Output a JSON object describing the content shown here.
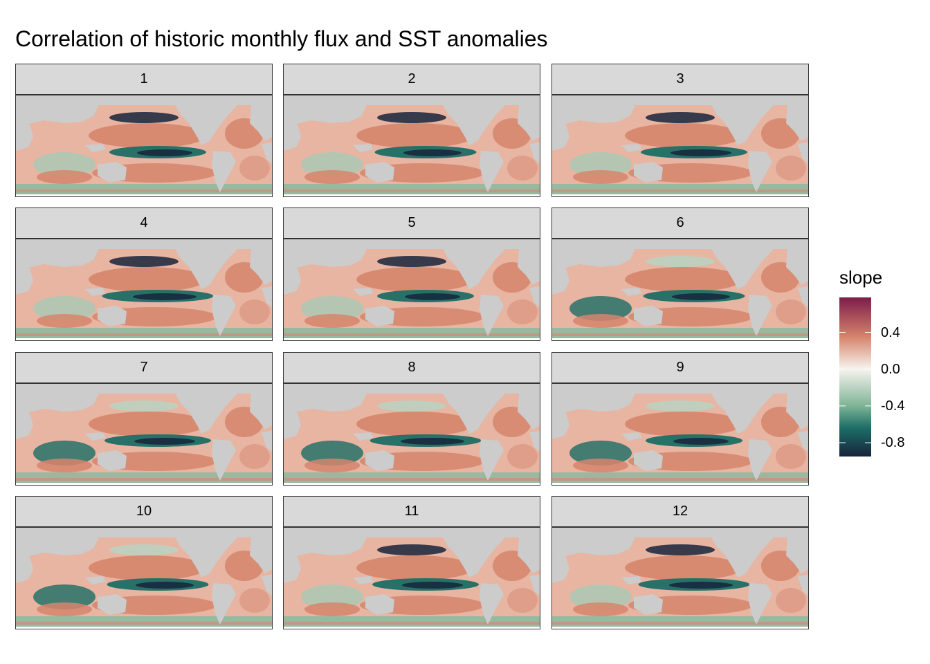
{
  "title": "Correlation of historic monthly flux and SST anomalies",
  "facets": [
    "1",
    "2",
    "3",
    "4",
    "5",
    "6",
    "7",
    "8",
    "9",
    "10",
    "11",
    "12"
  ],
  "legend": {
    "title": "slope",
    "ticks": [
      {
        "label": "0.4",
        "value": 0.4
      },
      {
        "label": "0.0",
        "value": 0.0
      },
      {
        "label": "-0.4",
        "value": -0.4
      },
      {
        "label": "-0.8",
        "value": -0.8
      }
    ],
    "range": [
      -0.95,
      0.78
    ],
    "colors": {
      "high": "#7d1c4a",
      "mid_high": "#d6856c",
      "zero": "#f7f3ef",
      "mid_low": "#7fb596",
      "low_mid": "#1c6e66",
      "low": "#16243c"
    }
  },
  "map_colors": {
    "land": "#cccccc",
    "border": "#333333",
    "strip": "#d9d9d9"
  }
}
